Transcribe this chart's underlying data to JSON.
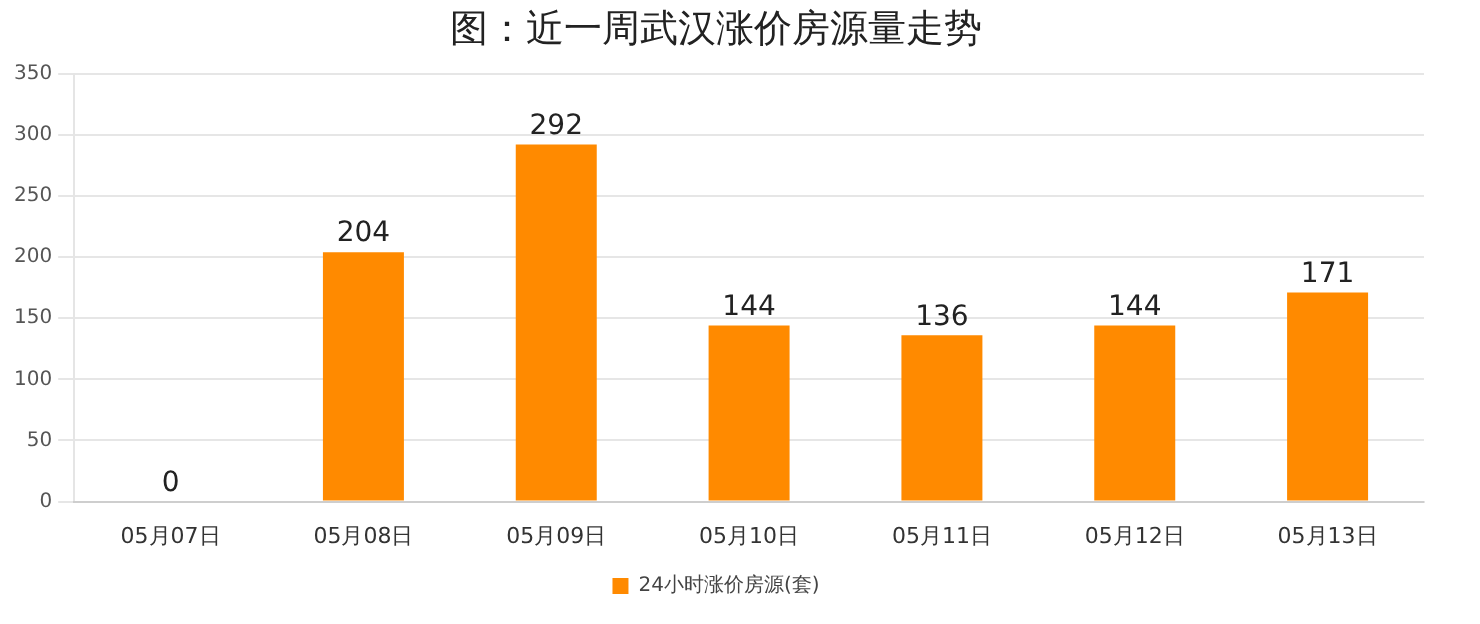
{
  "chart_data": {
    "type": "bar",
    "title": "图：近一周武汉涨价房源量走势",
    "categories": [
      "05月07日",
      "05月08日",
      "05月09日",
      "05月10日",
      "05月11日",
      "05月12日",
      "05月13日"
    ],
    "series": [
      {
        "name": "24小时涨价房源(套)",
        "color": "#ff8a00",
        "values": [
          0,
          204,
          292,
          144,
          136,
          144,
          171
        ]
      }
    ],
    "ylim": [
      0,
      350
    ],
    "yticks": [
      0,
      50,
      100,
      150,
      200,
      250,
      300,
      350
    ],
    "grid": "y",
    "legend": "bottom",
    "data_labels": true
  }
}
